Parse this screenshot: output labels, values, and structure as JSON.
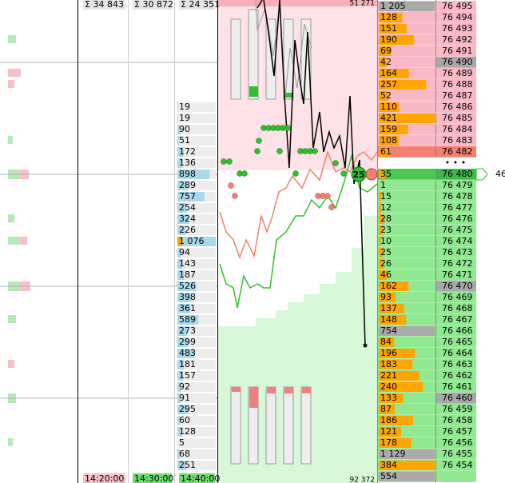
{
  "columns": [
    {
      "header": "Σ 34 843",
      "footer": "14:20:00"
    },
    {
      "header": "Σ 30 872",
      "footer": "14:30:00"
    },
    {
      "header": "Σ 24 351",
      "footer": "14:40:00"
    }
  ],
  "cluster_values": [
    "19",
    "19",
    "90",
    "51",
    "172",
    "136",
    "898",
    "289",
    "757",
    "254",
    "324",
    "226",
    "1 076",
    "94",
    "143",
    "187",
    "526",
    "398",
    "361",
    "589",
    "273",
    "299",
    "483",
    "181",
    "157",
    "92",
    "91",
    "295",
    "60",
    "128",
    "5",
    "68",
    "251"
  ],
  "chart": {
    "top_label": "51 271",
    "bottom_label": "92 372",
    "marker": "25"
  },
  "ladder": {
    "separator": "• • •",
    "last_price_marker": "46",
    "rows": [
      {
        "volume": "1 205",
        "price": "76 495"
      },
      {
        "volume": "128",
        "price": "76 494"
      },
      {
        "volume": "151",
        "price": "76 493"
      },
      {
        "volume": "190",
        "price": "76 492"
      },
      {
        "volume": "69",
        "price": "76 491"
      },
      {
        "volume": "42",
        "price": "76 490"
      },
      {
        "volume": "164",
        "price": "76 489"
      },
      {
        "volume": "257",
        "price": "76 488"
      },
      {
        "volume": "52",
        "price": "76 487"
      },
      {
        "volume": "110",
        "price": "76 486"
      },
      {
        "volume": "421",
        "price": "76 485"
      },
      {
        "volume": "159",
        "price": "76 484"
      },
      {
        "volume": "108",
        "price": "76 483"
      },
      {
        "volume": "61",
        "price": "76 482"
      },
      {
        "volume": "35",
        "price": "76 480"
      },
      {
        "volume": "1",
        "price": "76 479"
      },
      {
        "volume": "15",
        "price": "76 478"
      },
      {
        "volume": "12",
        "price": "76 477"
      },
      {
        "volume": "28",
        "price": "76 476"
      },
      {
        "volume": "23",
        "price": "76 475"
      },
      {
        "volume": "10",
        "price": "76 474"
      },
      {
        "volume": "25",
        "price": "76 473"
      },
      {
        "volume": "26",
        "price": "76 472"
      },
      {
        "volume": "46",
        "price": "76 471"
      },
      {
        "volume": "162",
        "price": "76 470"
      },
      {
        "volume": "93",
        "price": "76 469"
      },
      {
        "volume": "137",
        "price": "76 468"
      },
      {
        "volume": "148",
        "price": "76 467"
      },
      {
        "volume": "754",
        "price": "76 466"
      },
      {
        "volume": "84",
        "price": "76 465"
      },
      {
        "volume": "196",
        "price": "76 464"
      },
      {
        "volume": "183",
        "price": "76 463"
      },
      {
        "volume": "221",
        "price": "76 462"
      },
      {
        "volume": "240",
        "price": "76 461"
      },
      {
        "volume": "133",
        "price": "76 460"
      },
      {
        "volume": "87",
        "price": "76 459"
      },
      {
        "volume": "186",
        "price": "76 458"
      },
      {
        "volume": "121",
        "price": "76 457"
      },
      {
        "volume": "178",
        "price": "76 456"
      },
      {
        "volume": "1 129",
        "price": "76 455"
      },
      {
        "volume": "384",
        "price": "76 454"
      },
      {
        "volume": "554"
      }
    ]
  }
}
